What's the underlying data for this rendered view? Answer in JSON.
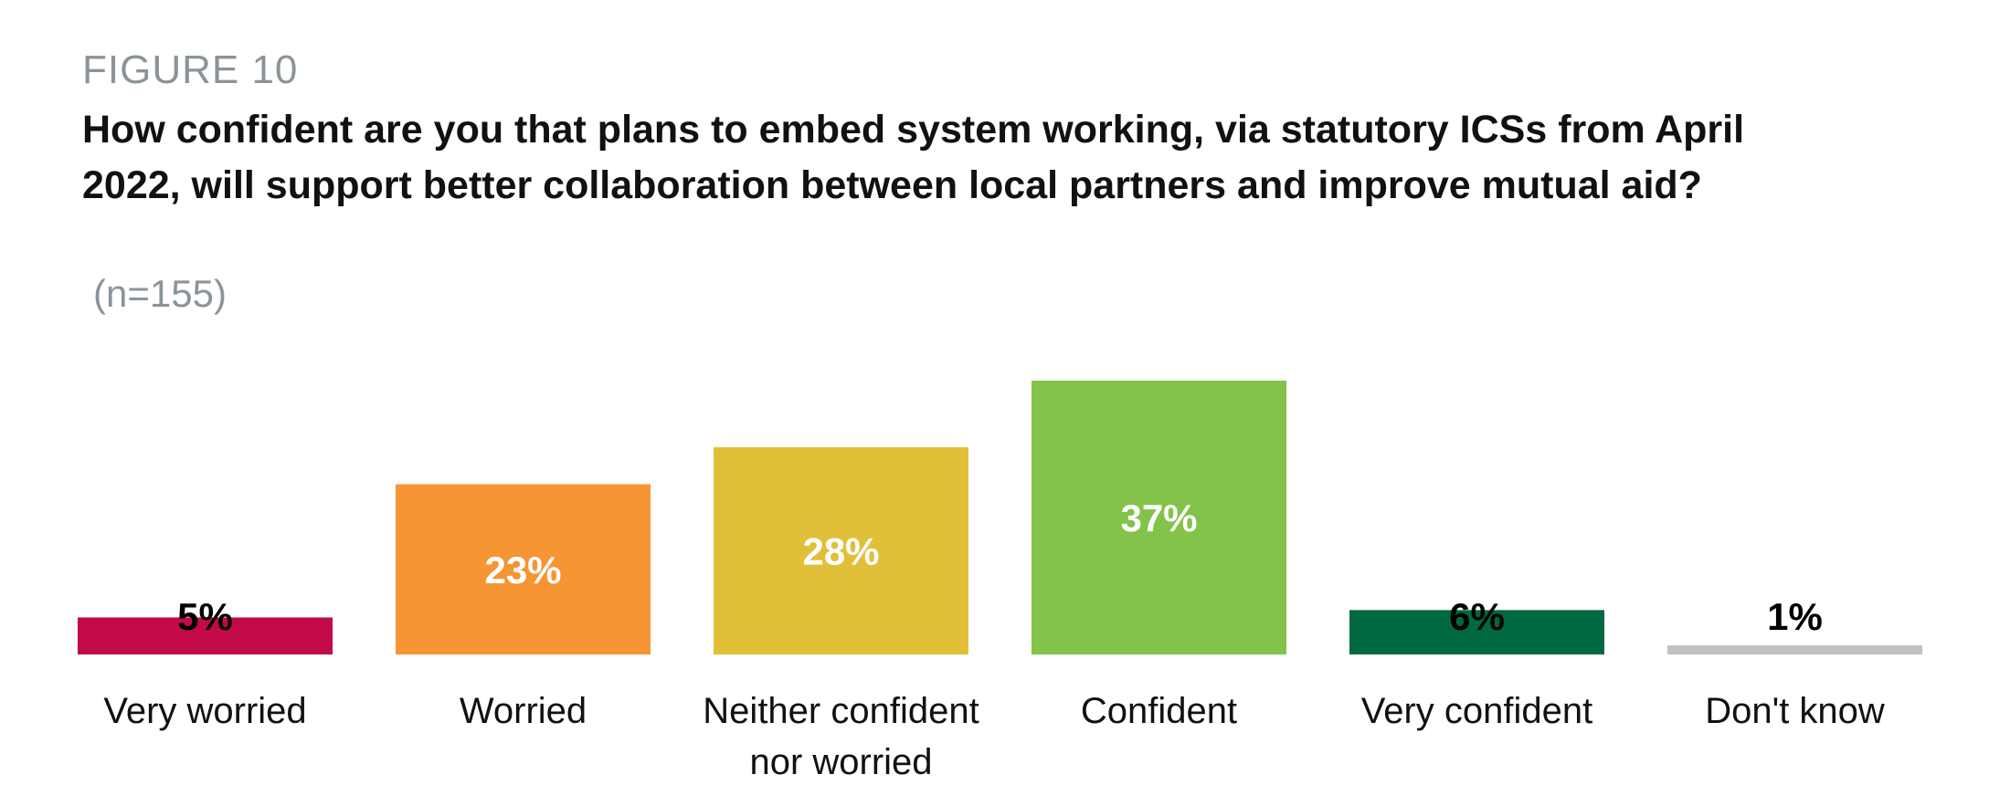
{
  "figure_label": "FIGURE 10",
  "chart_data": {
    "type": "bar",
    "title": "How confident are you that plans to embed system working, via statutory ICSs from April 2022, will support better collaboration between local partners and improve mutual aid?",
    "subtitle": "(n=155)",
    "categories": [
      [
        "Very worried"
      ],
      [
        "Worried"
      ],
      [
        "Neither confident",
        "nor worried"
      ],
      [
        "Confident"
      ],
      [
        "Very confident"
      ],
      [
        "Don't know"
      ]
    ],
    "values": [
      5,
      23,
      28,
      37,
      6,
      1
    ],
    "value_labels": [
      "5%",
      "23%",
      "28%",
      "37%",
      "6%",
      "1%"
    ],
    "colors": [
      "#c20a4a",
      "#f79433",
      "#e2bf38",
      "#84c34a",
      "#006940",
      "#c2c2c2"
    ],
    "label_colors": [
      "#000000",
      "#ffffff",
      "#ffffff",
      "#ffffff",
      "#000000",
      "#000000"
    ],
    "label_inside": [
      false,
      true,
      true,
      true,
      false,
      false
    ],
    "ylim": [
      0,
      40
    ],
    "grid": false,
    "legend": "none"
  }
}
